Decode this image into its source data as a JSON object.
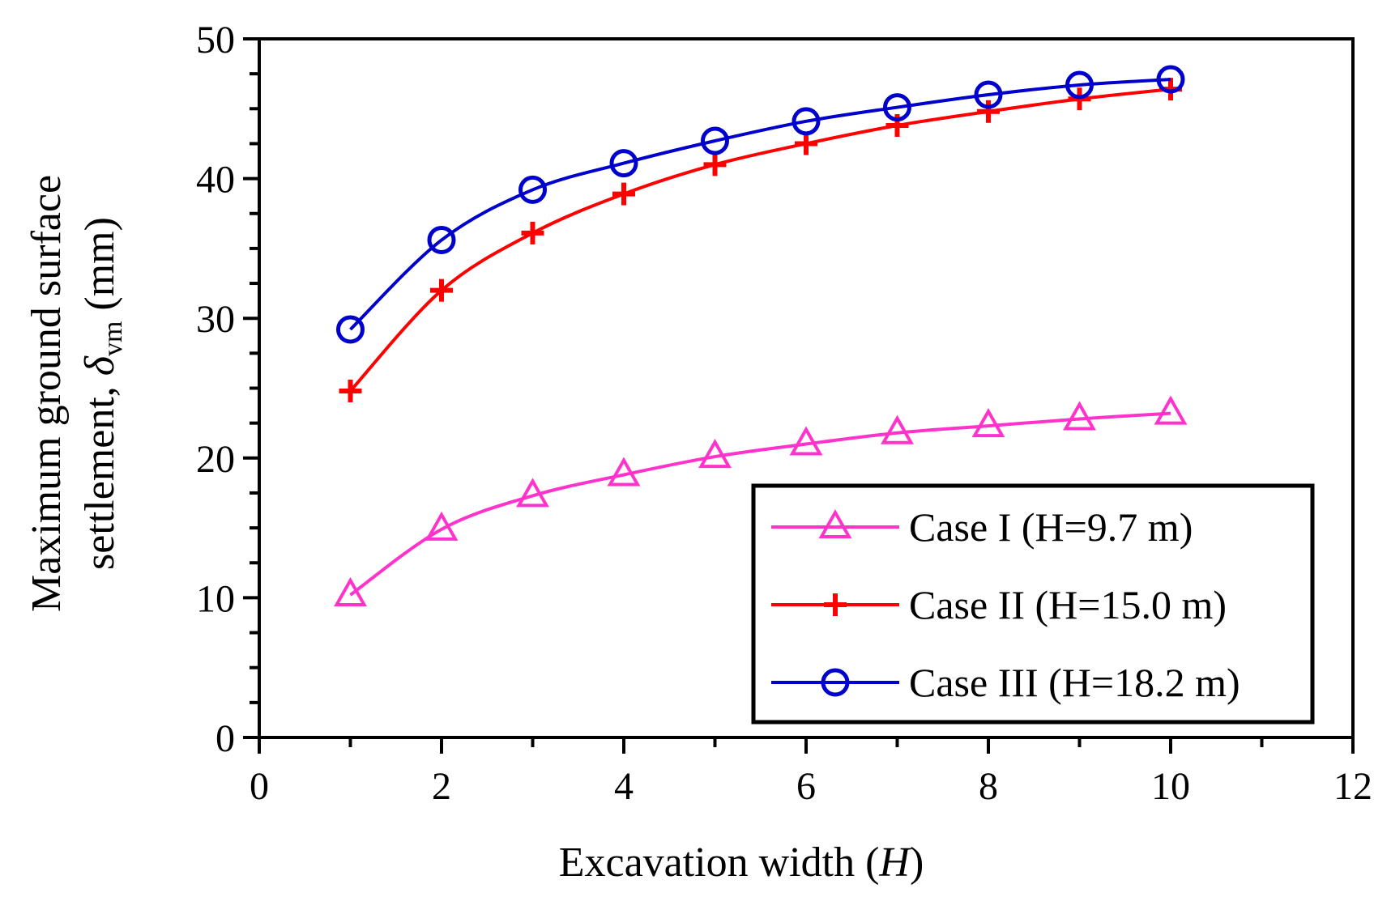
{
  "chart_data": {
    "type": "line",
    "title": "",
    "xlabel": {
      "main": "Excavation width (",
      "italic": "H",
      "tail": ")"
    },
    "ylabel": {
      "line1": "Maximum ground surface",
      "line2_main": "settlement, ",
      "line2_symbol": "δ",
      "line2_sub": "vm",
      "line2_tail": " (mm)"
    },
    "xlim": [
      0,
      12
    ],
    "ylim": [
      0,
      50
    ],
    "xticks": [
      0,
      2,
      4,
      6,
      8,
      10,
      12
    ],
    "yticks": [
      0,
      10,
      20,
      30,
      40,
      50
    ],
    "x_minor_step": 1,
    "y_minor_step": 2.5,
    "legend_position": "lower-right",
    "series": [
      {
        "name": "Case I (H=9.7 m)",
        "color": "#ff33cc",
        "marker": "triangle",
        "x": [
          1,
          2,
          3,
          4,
          5,
          6,
          7,
          8,
          9,
          10
        ],
        "values": [
          10.2,
          14.9,
          17.3,
          18.8,
          20.1,
          21.0,
          21.8,
          22.3,
          22.8,
          23.2
        ]
      },
      {
        "name": "Case II (H=15.0 m)",
        "color": "#ff0000",
        "marker": "plus",
        "x": [
          1,
          2,
          3,
          4,
          5,
          6,
          7,
          8,
          9,
          10
        ],
        "values": [
          24.8,
          32.0,
          36.1,
          38.9,
          41.0,
          42.5,
          43.8,
          44.8,
          45.7,
          46.4
        ]
      },
      {
        "name": "Case III (H=18.2 m)",
        "color": "#0000cc",
        "marker": "circle",
        "x": [
          1,
          2,
          3,
          4,
          5,
          6,
          7,
          8,
          9,
          10
        ],
        "values": [
          29.2,
          35.6,
          39.2,
          41.1,
          42.7,
          44.1,
          45.1,
          46.0,
          46.7,
          47.1
        ]
      }
    ]
  }
}
